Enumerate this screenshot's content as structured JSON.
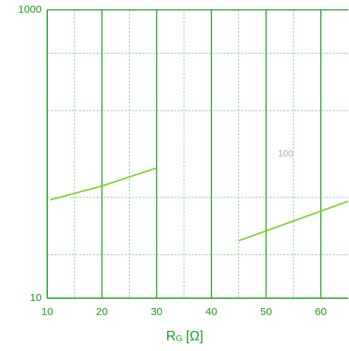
{
  "chart_data": {
    "type": "line",
    "xlabel": {
      "main": "R",
      "sub": "G",
      "unit": "[Ω]"
    },
    "x": [
      10.5,
      20,
      30
    ],
    "series": [
      {
        "color": "#6fd21e",
        "values": [
          48,
          60,
          80
        ]
      },
      {
        "color": "#6fd21e",
        "values": [
          null,
          null,
          null
        ]
      }
    ],
    "x2": [
      45,
      65
    ],
    "series2": {
      "color": "#6fd21e",
      "values": [
        25,
        47
      ]
    },
    "xlim": [
      10,
      65
    ],
    "xticks": [
      10,
      20,
      30,
      40,
      50,
      60
    ],
    "ylim": [
      10,
      1000
    ],
    "yticks": [
      10,
      1000
    ],
    "log_y": true,
    "grid": true,
    "annotation": "100"
  }
}
